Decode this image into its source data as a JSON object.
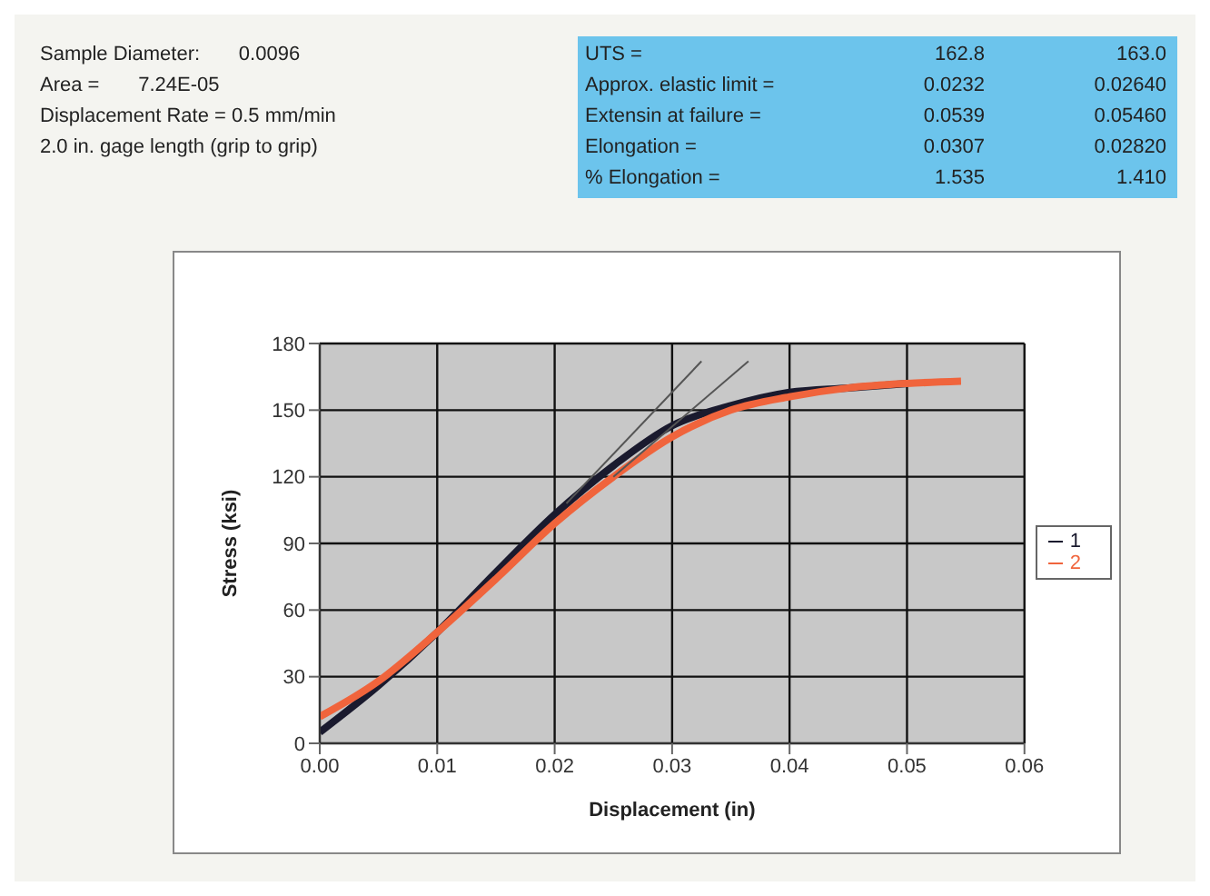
{
  "chart_data": {
    "type": "line",
    "xlabel": "Displacement (in)",
    "ylabel": "Stress (ksi)",
    "annotations": [
      "Sample Diameter:       0.0096",
      "Area =       7.24E-05",
      "Displacement Rate = 0.5 mm/min",
      "2.0 in. gage length (grip to grip)",
      "UTS =",
      "162.8",
      "163.0",
      "Approx. elastic limit =",
      "0.0232",
      "0.02640",
      "Extensin at failure =",
      "0.0539",
      "0.05460",
      "Elongation =",
      "0.0307",
      "0.02820",
      "% Elongation =",
      "1.535",
      "1.410"
    ],
    "xlim": [
      0,
      0.06
    ],
    "xticks": [
      {
        "value": 0,
        "label": "0.00"
      },
      {
        "value": 0.01,
        "label": "0.01"
      },
      {
        "value": 0.02,
        "label": "0.02"
      },
      {
        "value": 0.03,
        "label": "0.03"
      },
      {
        "value": 0.04,
        "label": "0.04"
      },
      {
        "value": 0.05,
        "label": "0.05"
      },
      {
        "value": 0.06,
        "label": "0.06"
      }
    ],
    "ylim": [
      0,
      180
    ],
    "yticks": [
      0,
      30,
      60,
      90,
      120,
      150,
      180
    ],
    "grid": true,
    "legend": "right",
    "marker": "none",
    "series": [
      {
        "name": "1",
        "color": "#1a1a2e",
        "x": [
          0,
          0.005,
          0.01,
          0.015,
          0.02,
          0.025,
          0.03,
          0.035,
          0.04,
          0.045,
          0.05
        ],
        "values": [
          5,
          26,
          50,
          77,
          103,
          125,
          143,
          152,
          158,
          160,
          162
        ]
      },
      {
        "name": "2",
        "color": "#f0643c",
        "x": [
          0,
          0.005,
          0.01,
          0.015,
          0.02,
          0.025,
          0.03,
          0.035,
          0.04,
          0.045,
          0.05,
          0.0546
        ],
        "values": [
          12,
          28,
          50,
          74,
          99,
          120,
          138,
          150,
          156,
          160,
          162,
          163
        ]
      },
      {
        "color": "#555555",
        "x": [
          0.021,
          0.0325
        ],
        "values": [
          108,
          172
        ]
      },
      {
        "color": "#555555",
        "x": [
          0.025,
          0.0365
        ],
        "values": [
          120,
          172
        ]
      }
    ]
  }
}
